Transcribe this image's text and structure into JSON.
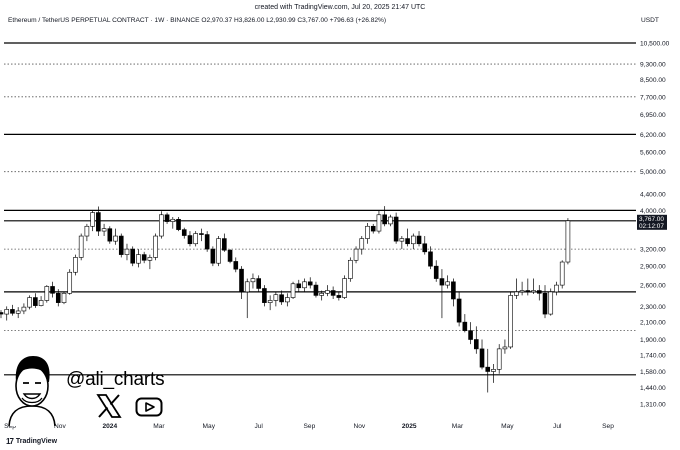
{
  "caption": "created with TradingView.com, Jul 20, 2025 21:47 UTC",
  "symbol_line": "Ethereum / TetherUS PERPETUAL CONTRACT · 1W · BINANCE  O2,970.37  H3,826.00  L2,930.99  C3,767.00  +796.63 (+26.82%)",
  "currency": "USDT",
  "price_label": "3,767.00",
  "countdown_label": "02:12:07",
  "handle": "@ali_charts",
  "brand": "TradingView",
  "icons": [
    "x-logo-icon",
    "youtube-icon",
    "ali-avatar-icon",
    "tradingview-logo-icon"
  ],
  "colors": {
    "up": "#ffffff",
    "down": "#000000",
    "last_price": "#131722"
  },
  "chart_data": {
    "type": "candlestick",
    "title": "",
    "xlabel": "",
    "ylabel": "",
    "y_scale": "log",
    "ylim": [
      1210,
      12000
    ],
    "grid": false,
    "y_ticks": [
      10500,
      9300,
      8500,
      7700,
      6950,
      6200,
      5600,
      5000,
      4400,
      4000,
      3200,
      2900,
      2600,
      2300,
      2100,
      1900,
      1740,
      1580,
      1440,
      1310
    ],
    "y_tick_labels": [
      "10,500.00",
      "9,300.00",
      "8,500.00",
      "7,700.00",
      "6,950.00",
      "6,200.00",
      "5,600.00",
      "5,000.00",
      "4,400.00",
      "4,000.00",
      "3,200.00",
      "2,900.00",
      "2,600.00",
      "2,300.00",
      "2,100.00",
      "1,900.00",
      "1,740.00",
      "1,580.00",
      "1,440.00",
      "1,310.00"
    ],
    "x_tick_labels": [
      {
        "label": "Sep",
        "date": "2023-09"
      },
      {
        "label": "Nov",
        "date": "2023-11"
      },
      {
        "label": "2024",
        "date": "2024-01"
      },
      {
        "label": "Mar",
        "date": "2024-03"
      },
      {
        "label": "May",
        "date": "2024-05"
      },
      {
        "label": "Jul",
        "date": "2024-07"
      },
      {
        "label": "Sep",
        "date": "2024-09"
      },
      {
        "label": "Nov",
        "date": "2024-11"
      },
      {
        "label": "2025",
        "date": "2025-01"
      },
      {
        "label": "Mar",
        "date": "2025-03"
      },
      {
        "label": "May",
        "date": "2025-05"
      },
      {
        "label": "Jul",
        "date": "2025-07"
      },
      {
        "label": "Sep",
        "date": "2025-09"
      }
    ],
    "horizontal_lines": [
      {
        "price": 10500,
        "style": "solid"
      },
      {
        "price": 9300,
        "style": "dotted"
      },
      {
        "price": 7700,
        "style": "dotted"
      },
      {
        "price": 6200,
        "style": "solid"
      },
      {
        "price": 5000,
        "style": "dotted"
      },
      {
        "price": 4000,
        "style": "solid"
      },
      {
        "price": 3767,
        "style": "solid"
      },
      {
        "price": 3200,
        "style": "dotted"
      },
      {
        "price": 2500,
        "style": "solid"
      },
      {
        "price": 2000,
        "style": "dotted"
      },
      {
        "price": 1550,
        "style": "solid"
      }
    ],
    "last_price": 3767,
    "candles_weekly_ohlc": [
      [
        1640,
        1650,
        1600,
        1630
      ],
      [
        1630,
        1645,
        1560,
        1580
      ],
      [
        1580,
        1620,
        1530,
        1600
      ],
      [
        1600,
        1680,
        1590,
        1660
      ],
      [
        1660,
        1700,
        1620,
        1640
      ],
      [
        1640,
        1660,
        1560,
        1580
      ],
      [
        1580,
        1600,
        1530,
        1560
      ],
      [
        1560,
        1680,
        1550,
        1660
      ],
      [
        1660,
        1830,
        1650,
        1800
      ],
      [
        1800,
        1830,
        1740,
        1780
      ],
      [
        1780,
        1900,
        1760,
        1880
      ],
      [
        1880,
        1980,
        1860,
        1960
      ],
      [
        1960,
        2080,
        1940,
        2050
      ],
      [
        2050,
        2120,
        2000,
        2090
      ],
      [
        2090,
        2200,
        2040,
        2170
      ],
      [
        2170,
        2250,
        2090,
        2220
      ],
      [
        2220,
        2250,
        2150,
        2200
      ],
      [
        2200,
        2300,
        2120,
        2260
      ],
      [
        2260,
        2320,
        2180,
        2210
      ],
      [
        2210,
        2290,
        2150,
        2240
      ],
      [
        2240,
        2340,
        2200,
        2290
      ],
      [
        2290,
        2450,
        2260,
        2420
      ],
      [
        2420,
        2480,
        2280,
        2310
      ],
      [
        2310,
        2440,
        2300,
        2380
      ],
      [
        2380,
        2600,
        2350,
        2580
      ],
      [
        2580,
        2650,
        2420,
        2480
      ],
      [
        2480,
        2540,
        2300,
        2350
      ],
      [
        2350,
        2500,
        2330,
        2480
      ],
      [
        2480,
        2850,
        2460,
        2800
      ],
      [
        2800,
        3100,
        2750,
        3050
      ],
      [
        3050,
        3500,
        3000,
        3450
      ],
      [
        3450,
        3700,
        3350,
        3650
      ],
      [
        3650,
        4000,
        3550,
        3950
      ],
      [
        3950,
        4090,
        3450,
        3550
      ],
      [
        3550,
        3700,
        3450,
        3600
      ],
      [
        3600,
        3650,
        3300,
        3350
      ],
      [
        3350,
        3600,
        3280,
        3450
      ],
      [
        3450,
        3500,
        3050,
        3100
      ],
      [
        3100,
        3300,
        3000,
        3200
      ],
      [
        3200,
        3250,
        2900,
        2950
      ],
      [
        2950,
        3200,
        2880,
        3100
      ],
      [
        3100,
        3150,
        2950,
        3000
      ],
      [
        3000,
        3100,
        2850,
        3050
      ],
      [
        3050,
        3500,
        3000,
        3450
      ],
      [
        3450,
        3980,
        3400,
        3900
      ],
      [
        3900,
        3950,
        3700,
        3750
      ],
      [
        3750,
        3850,
        3600,
        3800
      ],
      [
        3800,
        3850,
        3550,
        3580
      ],
      [
        3580,
        3620,
        3400,
        3460
      ],
      [
        3460,
        3550,
        3250,
        3300
      ],
      [
        3300,
        3550,
        3250,
        3500
      ],
      [
        3500,
        3600,
        3350,
        3480
      ],
      [
        3480,
        3550,
        3150,
        3200
      ],
      [
        3200,
        3250,
        2900,
        2950
      ],
      [
        2950,
        3450,
        2900,
        3400
      ],
      [
        3400,
        3500,
        3150,
        3180
      ],
      [
        3180,
        3200,
        2950,
        2980
      ],
      [
        2980,
        3050,
        2800,
        2850
      ],
      [
        2850,
        2900,
        2400,
        2500
      ],
      [
        2500,
        2700,
        2150,
        2650
      ],
      [
        2650,
        2780,
        2550,
        2700
      ],
      [
        2700,
        2750,
        2500,
        2550
      ],
      [
        2550,
        2600,
        2300,
        2350
      ],
      [
        2350,
        2450,
        2250,
        2380
      ],
      [
        2380,
        2500,
        2300,
        2460
      ],
      [
        2460,
        2520,
        2320,
        2360
      ],
      [
        2360,
        2480,
        2300,
        2420
      ],
      [
        2420,
        2650,
        2400,
        2620
      ],
      [
        2620,
        2680,
        2500,
        2560
      ],
      [
        2560,
        2700,
        2500,
        2650
      ],
      [
        2650,
        2720,
        2550,
        2600
      ],
      [
        2600,
        2650,
        2420,
        2450
      ],
      [
        2450,
        2520,
        2380,
        2480
      ],
      [
        2480,
        2600,
        2440,
        2520
      ],
      [
        2520,
        2580,
        2400,
        2450
      ],
      [
        2450,
        2500,
        2380,
        2420
      ],
      [
        2420,
        2750,
        2400,
        2700
      ],
      [
        2700,
        3050,
        2650,
        3000
      ],
      [
        3000,
        3250,
        2950,
        3200
      ],
      [
        3200,
        3450,
        3100,
        3400
      ],
      [
        3400,
        3720,
        3300,
        3650
      ],
      [
        3650,
        3700,
        3500,
        3550
      ],
      [
        3550,
        4000,
        3500,
        3900
      ],
      [
        3900,
        4100,
        3650,
        3700
      ],
      [
        3700,
        3900,
        3650,
        3850
      ],
      [
        3850,
        3950,
        3300,
        3350
      ],
      [
        3350,
        3450,
        3200,
        3400
      ],
      [
        3400,
        3600,
        3250,
        3300
      ],
      [
        3300,
        3500,
        3200,
        3450
      ],
      [
        3450,
        3550,
        3250,
        3300
      ],
      [
        3300,
        3450,
        3100,
        3150
      ],
      [
        3150,
        3250,
        2850,
        2900
      ],
      [
        2900,
        3000,
        2650,
        2700
      ],
      [
        2700,
        2850,
        2150,
        2600
      ],
      [
        2600,
        2750,
        2550,
        2650
      ],
      [
        2650,
        2700,
        2300,
        2400
      ],
      [
        2400,
        2500,
        2050,
        2100
      ],
      [
        2100,
        2200,
        1980,
        2000
      ],
      [
        2000,
        2100,
        1850,
        1900
      ],
      [
        1900,
        2050,
        1750,
        1800
      ],
      [
        1800,
        1900,
        1600,
        1620
      ],
      [
        1620,
        1800,
        1400,
        1580
      ],
      [
        1580,
        1650,
        1480,
        1600
      ],
      [
        1600,
        1850,
        1560,
        1800
      ],
      [
        1800,
        1900,
        1750,
        1820
      ],
      [
        1820,
        2500,
        1800,
        2450
      ],
      [
        2450,
        2700,
        2400,
        2500
      ],
      [
        2500,
        2650,
        2450,
        2520
      ],
      [
        2520,
        2700,
        2450,
        2500
      ],
      [
        2500,
        2700,
        2470,
        2520
      ],
      [
        2520,
        2600,
        2380,
        2480
      ],
      [
        2480,
        2600,
        2150,
        2200
      ],
      [
        2200,
        2550,
        2180,
        2500
      ],
      [
        2500,
        2650,
        2450,
        2600
      ],
      [
        2600,
        3000,
        2550,
        2970
      ],
      [
        2970,
        3826,
        2930,
        3767
      ]
    ]
  }
}
